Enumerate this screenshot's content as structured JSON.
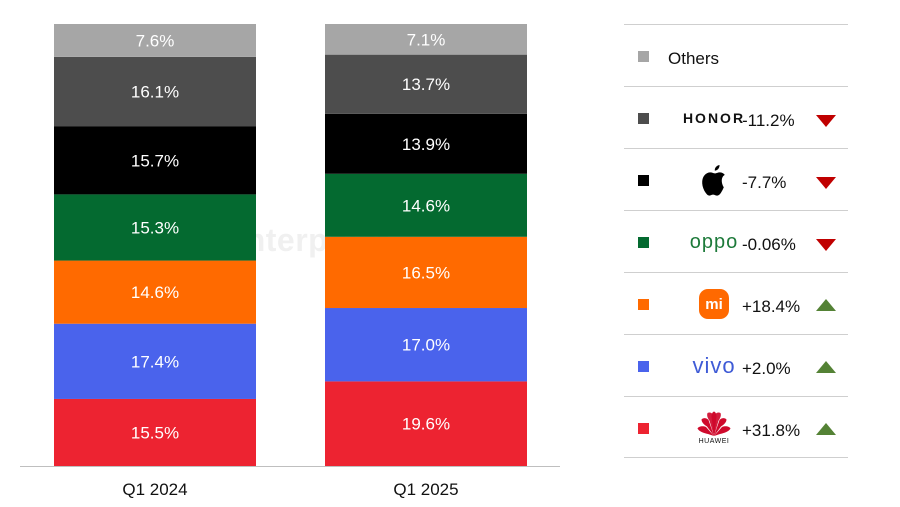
{
  "chart_data": {
    "type": "bar",
    "stacked": true,
    "normalized": true,
    "categories": [
      "Q1 2024",
      "Q1 2025"
    ],
    "series": [
      {
        "name": "Huawei",
        "color": "#ed2331",
        "values": [
          15.5,
          19.6
        ],
        "change": "+31.8%",
        "trend": "up"
      },
      {
        "name": "vivo",
        "color": "#4a63ec",
        "values": [
          17.4,
          17.0
        ],
        "change": "+2.0%",
        "trend": "up"
      },
      {
        "name": "Xiaomi",
        "color": "#ff6a00",
        "values": [
          14.6,
          16.5
        ],
        "change": "+18.4%",
        "trend": "up"
      },
      {
        "name": "OPPO",
        "color": "#046a30",
        "values": [
          15.3,
          14.6
        ],
        "change": "-0.06%",
        "trend": "down"
      },
      {
        "name": "Apple",
        "color": "#000000",
        "values": [
          15.7,
          13.9
        ],
        "change": "-7.7%",
        "trend": "down"
      },
      {
        "name": "HONOR",
        "color": "#4d4d4d",
        "values": [
          16.1,
          13.7
        ],
        "change": "-11.2%",
        "trend": "down"
      },
      {
        "name": "Others",
        "color": "#a6a6a6",
        "values": [
          7.6,
          7.1
        ],
        "change": "",
        "trend": ""
      }
    ],
    "data_labels": [
      [
        "15.5%",
        "19.6%"
      ],
      [
        "17.4%",
        "17.0%"
      ],
      [
        "14.6%",
        "16.5%"
      ],
      [
        "15.3%",
        "14.6%"
      ],
      [
        "15.7%",
        "13.9%"
      ],
      [
        "16.1%",
        "13.7%"
      ],
      [
        "7.6%",
        "7.1%"
      ]
    ],
    "ylim": [
      0,
      100
    ],
    "grid": false,
    "legend_position": "right"
  },
  "watermark": "Counterpoint",
  "legend": {
    "others": {
      "label": "Others",
      "color": "#a6a6a6"
    },
    "honor": {
      "logo_text": "HONOR",
      "color": "#4d4d4d",
      "change": "-11.2%",
      "trend_color": "#c00000"
    },
    "apple": {
      "icon": "apple-logo-icon",
      "color": "#000000",
      "change": "-7.7%",
      "trend_color": "#c00000"
    },
    "oppo": {
      "logo_text": "oppo",
      "color": "#046a30",
      "change": "-0.06%",
      "trend_color": "#c00000"
    },
    "xiaomi": {
      "logo_text": "mi",
      "color": "#ff6a00",
      "change": "+18.4%",
      "trend_color": "#548235"
    },
    "vivo": {
      "logo_text": "vivo",
      "color": "#4a63ec",
      "change": "+2.0%",
      "trend_color": "#548235"
    },
    "huawei": {
      "logo_text": "HUAWEI",
      "color": "#ed2331",
      "change": "+31.8%",
      "trend_color": "#548235"
    }
  }
}
